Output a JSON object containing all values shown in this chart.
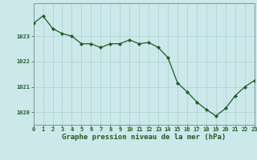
{
  "x": [
    0,
    1,
    2,
    3,
    4,
    5,
    6,
    7,
    8,
    9,
    10,
    11,
    12,
    13,
    14,
    15,
    16,
    17,
    18,
    19,
    20,
    21,
    22,
    23
  ],
  "y": [
    1023.5,
    1023.8,
    1023.3,
    1023.1,
    1023.0,
    1022.7,
    1022.7,
    1022.55,
    1022.7,
    1022.7,
    1022.85,
    1022.7,
    1022.75,
    1022.55,
    1022.15,
    1021.15,
    1020.8,
    1020.4,
    1020.1,
    1019.85,
    1020.15,
    1020.65,
    1021.0,
    1021.25
  ],
  "line_color": "#1f5c1f",
  "marker": "D",
  "marker_size": 2.2,
  "bg_color": "#cce8ea",
  "grid_color": "#aed4d6",
  "text_color": "#1f5c1f",
  "xlabel": "Graphe pression niveau de la mer (hPa)",
  "xlabel_fontsize": 6.5,
  "ylim": [
    1019.5,
    1024.3
  ],
  "yticks": [
    1020,
    1021,
    1022,
    1023
  ],
  "xticks": [
    0,
    1,
    2,
    3,
    4,
    5,
    6,
    7,
    8,
    9,
    10,
    11,
    12,
    13,
    14,
    15,
    16,
    17,
    18,
    19,
    20,
    21,
    22,
    23
  ],
  "tick_fontsize": 5.0,
  "tick_color": "#1f5c1f",
  "spine_color": "#7a9a9a",
  "linewidth": 0.9,
  "figsize": [
    3.2,
    2.0
  ],
  "dpi": 100
}
